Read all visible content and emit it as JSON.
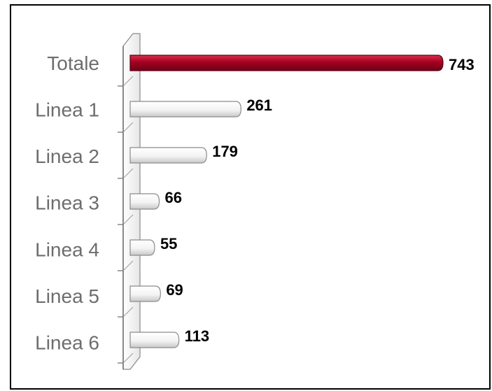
{
  "chart_data": {
    "type": "bar",
    "orientation": "horizontal",
    "categories": [
      "Totale",
      "Linea 1",
      "Linea 2",
      "Linea 3",
      "Linea 4",
      "Linea 5",
      "Linea 6"
    ],
    "values": [
      743,
      261,
      179,
      66,
      55,
      69,
      113
    ],
    "title": "",
    "xlabel": "",
    "ylabel": "",
    "grid": false,
    "legend": "none",
    "colors": {
      "highlight": "#a3001f",
      "highlight_dark": "#6e0015",
      "bar": "#ffffff",
      "bar_edge": "#8c8c8c"
    }
  }
}
